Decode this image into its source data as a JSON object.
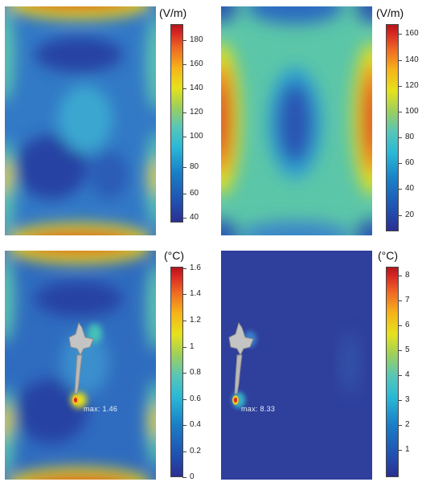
{
  "panels": [
    {
      "id": "e-field-1",
      "unit": "(V/m)",
      "ticks": [
        "180",
        "160",
        "140",
        "120",
        "100",
        "80",
        "60",
        "40"
      ]
    },
    {
      "id": "e-field-2",
      "unit": "(V/m)",
      "ticks": [
        "160",
        "140",
        "120",
        "100",
        "80",
        "60",
        "40",
        "20"
      ]
    },
    {
      "id": "temp-1",
      "unit": "(°C)",
      "ticks": [
        "1.6",
        "1.4",
        "1.2",
        "1",
        "0.8",
        "0.6",
        "0.4",
        "0.2",
        "0"
      ],
      "max_label": "max: 1.46"
    },
    {
      "id": "temp-2",
      "unit": "(°C)",
      "ticks": [
        "8",
        "7",
        "6",
        "5",
        "4",
        "3",
        "2",
        "1"
      ],
      "max_label": "max: 8.33"
    }
  ],
  "colors": {
    "low": "#2b2f92",
    "mid": "#58c6b8",
    "high": "#d72624",
    "implant": "#b8b8b8"
  }
}
